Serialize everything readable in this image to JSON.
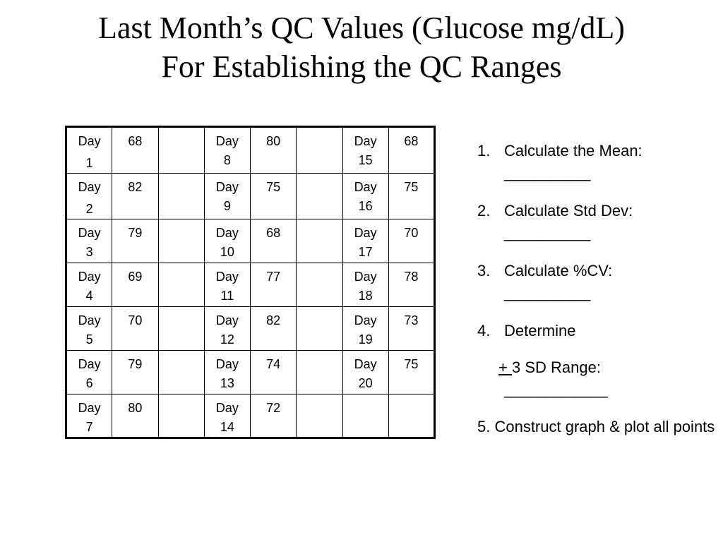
{
  "title": {
    "line1": "Last Month’s QC Values (Glucose mg/dL)",
    "line2": "For Establishing the QC Ranges"
  },
  "qc_table": {
    "rows": [
      [
        {
          "day": "Day",
          "num": "1",
          "value": "68"
        },
        {
          "day": "Day",
          "num": "8",
          "value": "80"
        },
        {
          "day": "Day",
          "num": "15",
          "value": "68"
        }
      ],
      [
        {
          "day": "Day",
          "num": "2",
          "value": "82"
        },
        {
          "day": "Day",
          "num": "9",
          "value": "75"
        },
        {
          "day": "Day",
          "num": "16",
          "value": "75"
        }
      ],
      [
        {
          "day": "Day",
          "num": "3",
          "value": "79"
        },
        {
          "day": "Day",
          "num": "10",
          "value": "68"
        },
        {
          "day": "Day",
          "num": "17",
          "value": "70"
        }
      ],
      [
        {
          "day": "Day",
          "num": "4",
          "value": "69"
        },
        {
          "day": "Day",
          "num": "11",
          "value": "77"
        },
        {
          "day": "Day",
          "num": "18",
          "value": "78"
        }
      ],
      [
        {
          "day": "Day",
          "num": "5",
          "value": "70"
        },
        {
          "day": "Day",
          "num": "12",
          "value": "82"
        },
        {
          "day": "Day",
          "num": "19",
          "value": "73"
        }
      ],
      [
        {
          "day": "Day",
          "num": "6",
          "value": "79"
        },
        {
          "day": "Day",
          "num": "13",
          "value": "74"
        },
        {
          "day": "Day",
          "num": "20",
          "value": "75"
        }
      ],
      [
        {
          "day": "Day",
          "num": "7",
          "value": "80"
        },
        {
          "day": "Day",
          "num": "14",
          "value": "72"
        },
        {
          "day": "",
          "num": "",
          "value": ""
        }
      ]
    ]
  },
  "steps": {
    "s1": {
      "n": "1.",
      "text": "Calculate the Mean:",
      "blank": "__________"
    },
    "s2": {
      "n": "2.",
      "text": "Calculate Std Dev:",
      "blank": "__________"
    },
    "s3": {
      "n": "3.",
      "text": "Calculate %CV:",
      "blank": "__________"
    },
    "s4": {
      "n": "4.",
      "text": "Determine"
    },
    "range": {
      "pm": "+ ",
      "text": "3 SD Range:",
      "blank": "____________"
    },
    "s5": {
      "text": "5. Construct graph & plot all points"
    }
  }
}
